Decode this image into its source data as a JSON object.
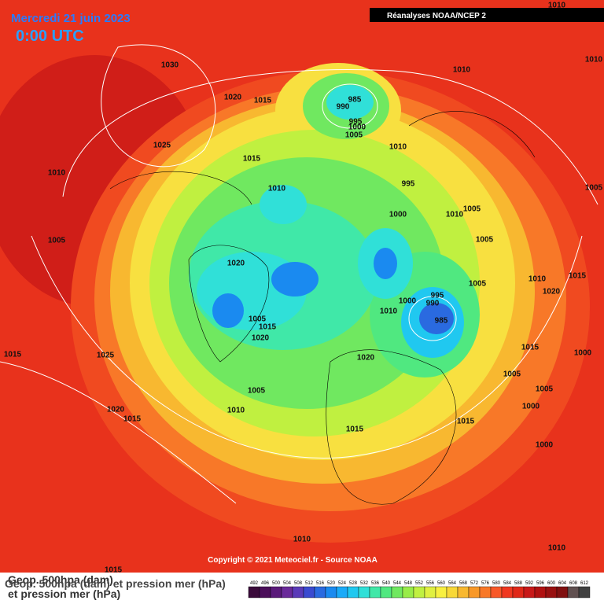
{
  "header": {
    "date": "Mercredi 21 juin 2023",
    "time": "0:00 UTC",
    "source": "Réanalyses NOAA/NCEP 2"
  },
  "isobar_labels": [
    "1010",
    "1030",
    "1010",
    "1010",
    "1020",
    "1015",
    "985",
    "990",
    "995",
    "1000",
    "1005",
    "1025",
    "1010",
    "1015",
    "1010",
    "1010",
    "995",
    "1005",
    "1000",
    "1010",
    "1005",
    "1005",
    "1005",
    "1020",
    "1010",
    "1015",
    "1005",
    "1020",
    "995",
    "1000",
    "990",
    "1010",
    "985",
    "1005",
    "1015",
    "1020",
    "1015",
    "1025",
    "1020",
    "1015",
    "1000",
    "1005",
    "1005",
    "1005",
    "1010",
    "1000",
    "1020",
    "1015",
    "1015",
    "1015",
    "1000",
    "1010",
    "1010",
    "1015"
  ],
  "copyright": "Copyright © 2021 Meteociel.fr - Source NOAA",
  "legend": {
    "line1": "Geop. 500hpa (dam)",
    "line2": "et pression mer (hPa)",
    "overlay": "Geop. 500hpa (dam) et pression mer (hPa)"
  },
  "scale": {
    "values": [
      492,
      496,
      500,
      504,
      508,
      512,
      516,
      520,
      524,
      528,
      532,
      536,
      540,
      544,
      548,
      552,
      556,
      560,
      564,
      568,
      572,
      576,
      580,
      584,
      588,
      592,
      596,
      600,
      604,
      608,
      612
    ],
    "colors": [
      "#3a0a3a",
      "#4b0f5a",
      "#5a1a7a",
      "#6a2a9a",
      "#5a3ab8",
      "#3a4ad0",
      "#2a6ae0",
      "#1a8af0",
      "#1aaaf8",
      "#20c8f0",
      "#30e0d8",
      "#40e8a8",
      "#50e880",
      "#70e860",
      "#98ec48",
      "#c0f040",
      "#e0f040",
      "#f8f040",
      "#f8d838",
      "#f8b830",
      "#f89828",
      "#f87828",
      "#f85828",
      "#f03820",
      "#e02818",
      "#c81818",
      "#b01010",
      "#981010",
      "#801010",
      "#605050",
      "#404040"
    ]
  }
}
